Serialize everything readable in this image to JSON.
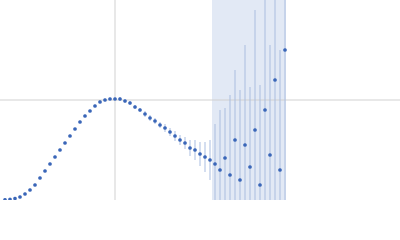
{
  "chart_data": {
    "type": "scatter",
    "x": [
      5,
      10,
      15,
      20,
      25,
      30,
      35,
      40,
      45,
      50,
      55,
      60,
      65,
      70,
      75,
      80,
      85,
      90,
      95,
      100,
      105,
      110,
      115,
      120,
      125,
      130,
      135,
      140,
      145,
      150,
      155,
      160,
      165,
      170,
      175,
      180,
      185,
      190,
      195,
      200,
      205,
      210,
      215,
      220,
      225,
      230,
      235,
      240,
      245,
      250,
      255,
      260,
      265,
      270,
      275,
      280,
      285
    ],
    "series": [
      {
        "color": "#3a66b8",
        "values": [
          0.2,
          0.6,
          1.5,
          3,
          6,
          10,
          15,
          22,
          29,
          36,
          43,
          50,
          57,
          64,
          71,
          78,
          84,
          89,
          94,
          98,
          100,
          101,
          101,
          101,
          99,
          97,
          93,
          90,
          86,
          82,
          79,
          75,
          72,
          68,
          64,
          60,
          57,
          52,
          50,
          46,
          43,
          40,
          36,
          30,
          42,
          25,
          60,
          20,
          55,
          33,
          70,
          15,
          90,
          45,
          120,
          30,
          150
        ],
        "errors": [
          0.5,
          0.5,
          0.5,
          0.5,
          0.5,
          0.5,
          0.5,
          0.5,
          0.5,
          0.5,
          0.5,
          0.5,
          0.5,
          0.5,
          0.5,
          0.5,
          0.5,
          0.5,
          0.5,
          0.5,
          1,
          1,
          1,
          2,
          2,
          2,
          2,
          2,
          3,
          3,
          3,
          3,
          4,
          4,
          5,
          5,
          6,
          8,
          10,
          12,
          15,
          20,
          40,
          60,
          50,
          80,
          70,
          90,
          100,
          80,
          120,
          100,
          150,
          110,
          160,
          120,
          200
        ]
      }
    ],
    "xlim": [
      0,
      400
    ],
    "ylim": [
      0,
      200
    ],
    "xticks": [
      115
    ],
    "yticks": [
      100
    ],
    "grid": true
  }
}
